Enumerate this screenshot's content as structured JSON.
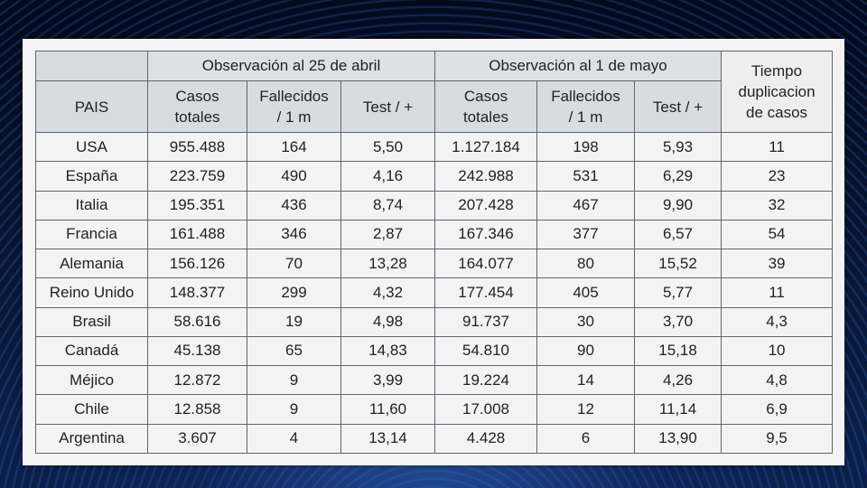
{
  "table": {
    "groups": [
      {
        "label": "Observación al 25 de abril"
      },
      {
        "label": "Observación al 1 de mayo"
      }
    ],
    "pais_header": "PAIS",
    "tiempo_header": [
      "Tiempo",
      "duplicacion",
      "de casos"
    ],
    "columns": [
      [
        "Casos",
        "totales"
      ],
      [
        "Fallecidos",
        "/ 1 m"
      ],
      [
        "Test / +"
      ],
      [
        "Casos",
        "totales"
      ],
      [
        "Fallecidos",
        "/ 1 m"
      ],
      [
        "Test / +"
      ]
    ],
    "rows": [
      {
        "pais": "USA",
        "casos_abr": "955.488",
        "fall_abr": "164",
        "test_abr": "5,50",
        "casos_may": "1.127.184",
        "fall_may": "198",
        "test_may": "5,93",
        "tiempo": "11"
      },
      {
        "pais": "España",
        "casos_abr": "223.759",
        "fall_abr": "490",
        "test_abr": "4,16",
        "casos_may": "242.988",
        "fall_may": "531",
        "test_may": "6,29",
        "tiempo": "23"
      },
      {
        "pais": "Italia",
        "casos_abr": "195.351",
        "fall_abr": "436",
        "test_abr": "8,74",
        "casos_may": "207.428",
        "fall_may": "467",
        "test_may": "9,90",
        "tiempo": "32"
      },
      {
        "pais": "Francia",
        "casos_abr": "161.488",
        "fall_abr": "346",
        "test_abr": "2,87",
        "casos_may": "167.346",
        "fall_may": "377",
        "test_may": "6,57",
        "tiempo": "54"
      },
      {
        "pais": "Alemania",
        "casos_abr": "156.126",
        "fall_abr": "70",
        "test_abr": "13,28",
        "casos_may": "164.077",
        "fall_may": "80",
        "test_may": "15,52",
        "tiempo": "39"
      },
      {
        "pais": "Reino Unido",
        "casos_abr": "148.377",
        "fall_abr": "299",
        "test_abr": "4,32",
        "casos_may": "177.454",
        "fall_may": "405",
        "test_may": "5,77",
        "tiempo": "11"
      },
      {
        "pais": "Brasil",
        "casos_abr": "58.616",
        "fall_abr": "19",
        "test_abr": "4,98",
        "casos_may": "91.737",
        "fall_may": "30",
        "test_may": "3,70",
        "tiempo": "4,3"
      },
      {
        "pais": "Canadá",
        "casos_abr": "45.138",
        "fall_abr": "65",
        "test_abr": "14,83",
        "casos_may": "54.810",
        "fall_may": "90",
        "test_may": "15,18",
        "tiempo": "10"
      },
      {
        "pais": "Méjico",
        "casos_abr": "12.872",
        "fall_abr": "9",
        "test_abr": "3,99",
        "casos_may": "19.224",
        "fall_may": "14",
        "test_may": "4,26",
        "tiempo": "4,8"
      },
      {
        "pais": "Chile",
        "casos_abr": "12.858",
        "fall_abr": "9",
        "test_abr": "11,60",
        "casos_may": "17.008",
        "fall_may": "12",
        "test_may": "11,14",
        "tiempo": "6,9"
      },
      {
        "pais": "Argentina",
        "casos_abr": "3.607",
        "fall_abr": "4",
        "test_abr": "13,14",
        "casos_may": "4.428",
        "fall_may": "6",
        "test_may": "13,90",
        "tiempo": "9,5"
      }
    ]
  }
}
